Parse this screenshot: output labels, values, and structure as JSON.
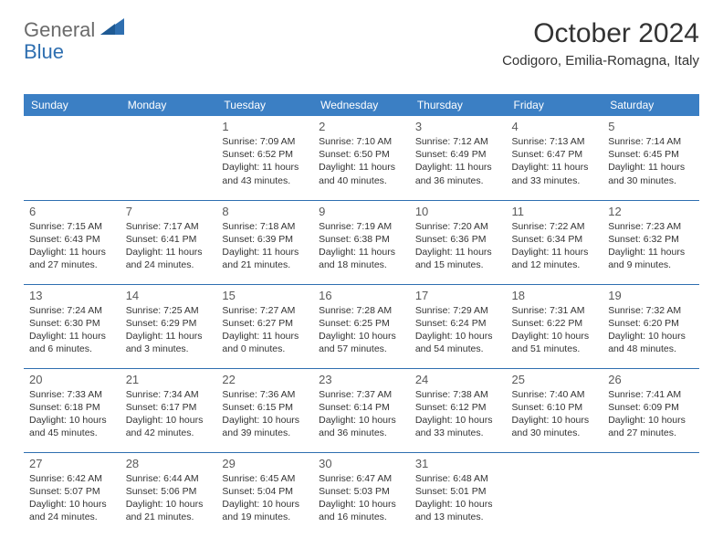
{
  "logo": {
    "general": "General",
    "blue": "Blue"
  },
  "title": "October 2024",
  "location": "Codigoro, Emilia-Romagna, Italy",
  "colors": {
    "header_bg": "#3b7fc4",
    "header_text": "#ffffff",
    "border": "#2f6fb0",
    "daynum": "#5a5a5a",
    "body_text": "#333333",
    "logo_gray": "#6b6b6b",
    "logo_blue": "#2f6fb0",
    "background": "#ffffff"
  },
  "typography": {
    "title_fontsize": 30,
    "location_fontsize": 15,
    "dayheader_fontsize": 12,
    "daynum_fontsize": 13,
    "dayinfo_fontsize": 10.5,
    "font_family": "Arial"
  },
  "layout": {
    "columns": 7,
    "rows": 5,
    "first_day_column": 2,
    "last_day": 31
  },
  "dayHeaders": [
    "Sunday",
    "Monday",
    "Tuesday",
    "Wednesday",
    "Thursday",
    "Friday",
    "Saturday"
  ],
  "days": [
    {
      "n": 1,
      "sunrise": "7:09 AM",
      "sunset": "6:52 PM",
      "daylight": "11 hours and 43 minutes."
    },
    {
      "n": 2,
      "sunrise": "7:10 AM",
      "sunset": "6:50 PM",
      "daylight": "11 hours and 40 minutes."
    },
    {
      "n": 3,
      "sunrise": "7:12 AM",
      "sunset": "6:49 PM",
      "daylight": "11 hours and 36 minutes."
    },
    {
      "n": 4,
      "sunrise": "7:13 AM",
      "sunset": "6:47 PM",
      "daylight": "11 hours and 33 minutes."
    },
    {
      "n": 5,
      "sunrise": "7:14 AM",
      "sunset": "6:45 PM",
      "daylight": "11 hours and 30 minutes."
    },
    {
      "n": 6,
      "sunrise": "7:15 AM",
      "sunset": "6:43 PM",
      "daylight": "11 hours and 27 minutes."
    },
    {
      "n": 7,
      "sunrise": "7:17 AM",
      "sunset": "6:41 PM",
      "daylight": "11 hours and 24 minutes."
    },
    {
      "n": 8,
      "sunrise": "7:18 AM",
      "sunset": "6:39 PM",
      "daylight": "11 hours and 21 minutes."
    },
    {
      "n": 9,
      "sunrise": "7:19 AM",
      "sunset": "6:38 PM",
      "daylight": "11 hours and 18 minutes."
    },
    {
      "n": 10,
      "sunrise": "7:20 AM",
      "sunset": "6:36 PM",
      "daylight": "11 hours and 15 minutes."
    },
    {
      "n": 11,
      "sunrise": "7:22 AM",
      "sunset": "6:34 PM",
      "daylight": "11 hours and 12 minutes."
    },
    {
      "n": 12,
      "sunrise": "7:23 AM",
      "sunset": "6:32 PM",
      "daylight": "11 hours and 9 minutes."
    },
    {
      "n": 13,
      "sunrise": "7:24 AM",
      "sunset": "6:30 PM",
      "daylight": "11 hours and 6 minutes."
    },
    {
      "n": 14,
      "sunrise": "7:25 AM",
      "sunset": "6:29 PM",
      "daylight": "11 hours and 3 minutes."
    },
    {
      "n": 15,
      "sunrise": "7:27 AM",
      "sunset": "6:27 PM",
      "daylight": "11 hours and 0 minutes."
    },
    {
      "n": 16,
      "sunrise": "7:28 AM",
      "sunset": "6:25 PM",
      "daylight": "10 hours and 57 minutes."
    },
    {
      "n": 17,
      "sunrise": "7:29 AM",
      "sunset": "6:24 PM",
      "daylight": "10 hours and 54 minutes."
    },
    {
      "n": 18,
      "sunrise": "7:31 AM",
      "sunset": "6:22 PM",
      "daylight": "10 hours and 51 minutes."
    },
    {
      "n": 19,
      "sunrise": "7:32 AM",
      "sunset": "6:20 PM",
      "daylight": "10 hours and 48 minutes."
    },
    {
      "n": 20,
      "sunrise": "7:33 AM",
      "sunset": "6:18 PM",
      "daylight": "10 hours and 45 minutes."
    },
    {
      "n": 21,
      "sunrise": "7:34 AM",
      "sunset": "6:17 PM",
      "daylight": "10 hours and 42 minutes."
    },
    {
      "n": 22,
      "sunrise": "7:36 AM",
      "sunset": "6:15 PM",
      "daylight": "10 hours and 39 minutes."
    },
    {
      "n": 23,
      "sunrise": "7:37 AM",
      "sunset": "6:14 PM",
      "daylight": "10 hours and 36 minutes."
    },
    {
      "n": 24,
      "sunrise": "7:38 AM",
      "sunset": "6:12 PM",
      "daylight": "10 hours and 33 minutes."
    },
    {
      "n": 25,
      "sunrise": "7:40 AM",
      "sunset": "6:10 PM",
      "daylight": "10 hours and 30 minutes."
    },
    {
      "n": 26,
      "sunrise": "7:41 AM",
      "sunset": "6:09 PM",
      "daylight": "10 hours and 27 minutes."
    },
    {
      "n": 27,
      "sunrise": "6:42 AM",
      "sunset": "5:07 PM",
      "daylight": "10 hours and 24 minutes."
    },
    {
      "n": 28,
      "sunrise": "6:44 AM",
      "sunset": "5:06 PM",
      "daylight": "10 hours and 21 minutes."
    },
    {
      "n": 29,
      "sunrise": "6:45 AM",
      "sunset": "5:04 PM",
      "daylight": "10 hours and 19 minutes."
    },
    {
      "n": 30,
      "sunrise": "6:47 AM",
      "sunset": "5:03 PM",
      "daylight": "10 hours and 16 minutes."
    },
    {
      "n": 31,
      "sunrise": "6:48 AM",
      "sunset": "5:01 PM",
      "daylight": "10 hours and 13 minutes."
    }
  ],
  "labels": {
    "sunrise": "Sunrise:",
    "sunset": "Sunset:",
    "daylight": "Daylight:"
  }
}
